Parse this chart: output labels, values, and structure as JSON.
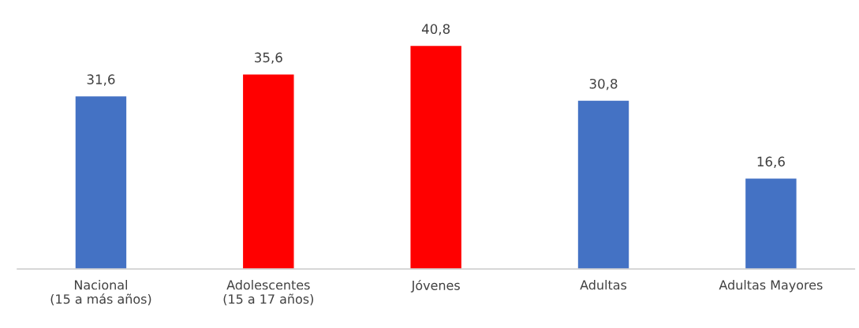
{
  "chart_data": {
    "type": "bar",
    "categories": [
      "Nacional\n(15 a más años)",
      "Adolescentes\n(15 a 17 años)",
      "Jóvenes",
      "Adultas",
      "Adultas Mayores"
    ],
    "values": [
      31.6,
      35.6,
      40.8,
      30.8,
      16.6
    ],
    "colors": [
      "#4472c4",
      "#ff0000",
      "#ff0000",
      "#4472c4",
      "#4472c4"
    ],
    "value_labels": [
      "31,6",
      "35,6",
      "40,8",
      "30,8",
      "16,6"
    ],
    "tick_labels": "x"
  }
}
